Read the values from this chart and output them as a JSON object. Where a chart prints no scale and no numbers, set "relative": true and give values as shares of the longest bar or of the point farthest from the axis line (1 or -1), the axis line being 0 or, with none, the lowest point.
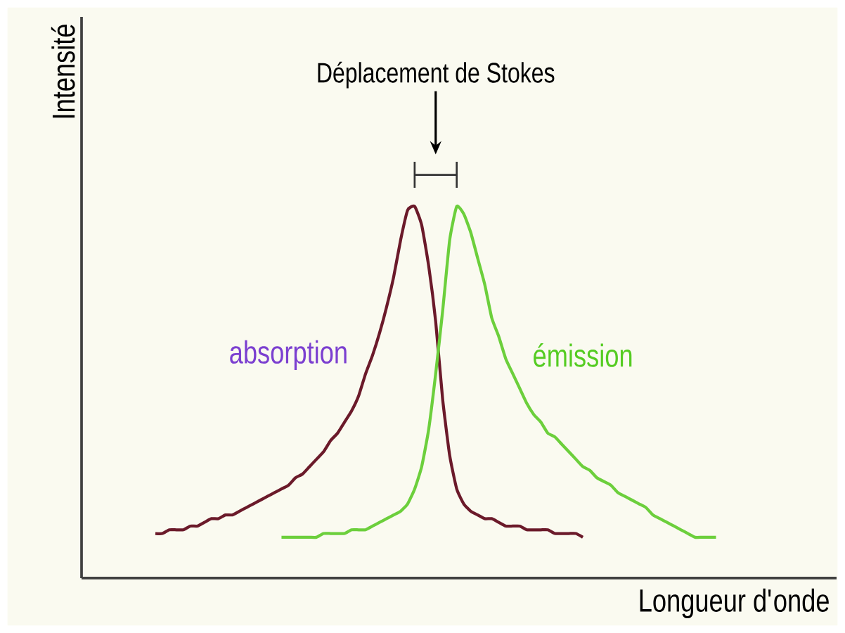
{
  "chart_data": {
    "type": "line",
    "relative": true,
    "xlabel": "Longueur d'onde",
    "ylabel": "Intensité",
    "annotations": [
      "Déplacement de Stokes"
    ],
    "categories": [
      null,
      null,
      null,
      null,
      null,
      null,
      null,
      null,
      null,
      null,
      null,
      null,
      null,
      null,
      null,
      null,
      null,
      null,
      null,
      null,
      null,
      null,
      null,
      null,
      null,
      null,
      null,
      null,
      null,
      null,
      null,
      null,
      null,
      null,
      null,
      null,
      null,
      null,
      null,
      null,
      null,
      null,
      null,
      null,
      null,
      null,
      null,
      null,
      null,
      null,
      null,
      null,
      null,
      null,
      null,
      null,
      null,
      null,
      null,
      null,
      null,
      null,
      null,
      null,
      null,
      null,
      null,
      null,
      null,
      null,
      null,
      null,
      null,
      null,
      null,
      null,
      null,
      null,
      null,
      null,
      null
    ],
    "series": [
      {
        "name": "absorption",
        "color": "#6b1a2a",
        "values": [
          0.12,
          0.12,
          0.13,
          0.13,
          0.13,
          0.14,
          0.14,
          0.15,
          0.16,
          0.16,
          0.17,
          0.17,
          0.18,
          0.19,
          0.2,
          0.21,
          0.22,
          0.23,
          0.24,
          0.25,
          0.27,
          0.28,
          0.3,
          0.32,
          0.34,
          0.37,
          0.39,
          0.42,
          0.45,
          0.49,
          0.55,
          0.6,
          0.66,
          0.73,
          0.81,
          0.91,
          0.99,
          1.0,
          0.95,
          0.84,
          0.69,
          0.48,
          0.33,
          0.24,
          0.2,
          0.18,
          0.17,
          0.16,
          0.16,
          0.15,
          0.14,
          0.14,
          0.14,
          0.13,
          0.13,
          0.13,
          0.13,
          0.12,
          0.12,
          0.12,
          0.12,
          0.11,
          null,
          null,
          null,
          null,
          null,
          null,
          null,
          null,
          null,
          null,
          null,
          null,
          null,
          null,
          null,
          null,
          null,
          null,
          null
        ]
      },
      {
        "name": "émission",
        "color": "#6ccf3c",
        "values": [
          null,
          null,
          null,
          null,
          null,
          null,
          null,
          null,
          null,
          null,
          null,
          null,
          null,
          null,
          null,
          null,
          null,
          null,
          0.11,
          0.11,
          0.11,
          0.11,
          0.11,
          0.11,
          0.12,
          0.12,
          0.12,
          0.12,
          0.13,
          0.13,
          0.13,
          0.14,
          0.15,
          0.16,
          0.17,
          0.18,
          0.2,
          0.24,
          0.3,
          0.4,
          0.55,
          0.72,
          0.91,
          1.0,
          0.98,
          0.93,
          0.86,
          0.79,
          0.7,
          0.65,
          0.59,
          0.55,
          0.51,
          0.47,
          0.44,
          0.42,
          0.39,
          0.38,
          0.36,
          0.34,
          0.32,
          0.3,
          0.29,
          0.27,
          0.26,
          0.25,
          0.23,
          0.22,
          0.21,
          0.2,
          0.19,
          0.17,
          0.16,
          0.15,
          0.14,
          0.13,
          0.12,
          0.11,
          0.11,
          0.11,
          0.11
        ]
      }
    ]
  }
}
